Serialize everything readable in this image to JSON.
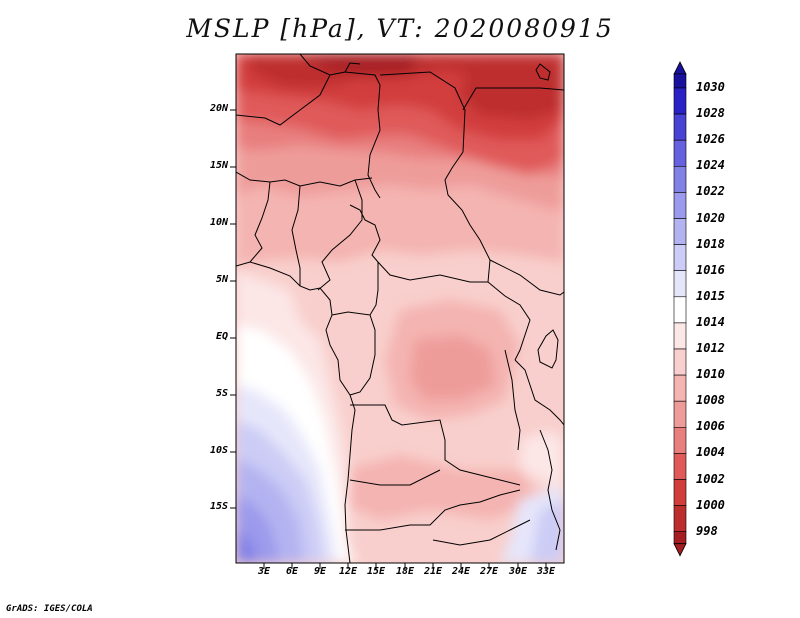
{
  "title": "MSLP [hPa], VT: 2020080915",
  "footer": "GrADS: IGES/COLA",
  "map": {
    "lat_labels": [
      "20N",
      "15N",
      "10N",
      "5N",
      "EQ",
      "5S",
      "10S",
      "15S"
    ],
    "lon_labels": [
      "3E",
      "6E",
      "9E",
      "12E",
      "15E",
      "18E",
      "21E",
      "24E",
      "27E",
      "30E",
      "33E"
    ]
  },
  "colorbar": {
    "levels": [
      "998",
      "1000",
      "1002",
      "1004",
      "1006",
      "1008",
      "1010",
      "1012",
      "1014",
      "1015",
      "1016",
      "1018",
      "1020",
      "1022",
      "1024",
      "1026",
      "1028",
      "1030"
    ],
    "colors": [
      "#a31d23",
      "#be2d2e",
      "#d23e3e",
      "#e05a5a",
      "#e87e7e",
      "#ee9c9a",
      "#f4b4b1",
      "#f8cfcc",
      "#fce6e6",
      "#ffffff",
      "#e6e6fb",
      "#ccccf6",
      "#b4b3f1",
      "#9b9aec",
      "#8281e6",
      "#6662df",
      "#4843d4",
      "#2a22c4",
      "#18119c"
    ]
  }
}
